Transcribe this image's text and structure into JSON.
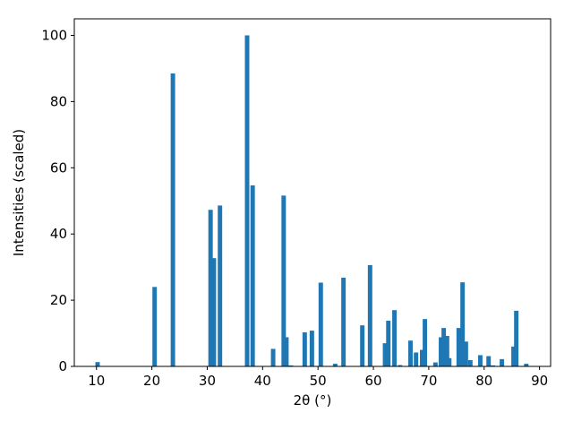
{
  "chart_data": {
    "type": "bar",
    "x_label": "2θ (°)",
    "y_label": "Intensities (scaled)",
    "color": "#1f77b4",
    "x": [
      10.2,
      20.5,
      23.8,
      30.6,
      31.2,
      32.3,
      37.2,
      38.2,
      41.9,
      43.8,
      44.3,
      45.1,
      47.6,
      48.9,
      50.5,
      53.1,
      54.6,
      58.0,
      59.4,
      62.1,
      62.7,
      63.8,
      64.8,
      66.7,
      67.7,
      68.8,
      69.3,
      71.2,
      72.2,
      72.7,
      73.3,
      73.7,
      75.4,
      76.1,
      76.7,
      77.5,
      79.3,
      80.8,
      81.6,
      83.2,
      85.3,
      85.8,
      87.6
    ],
    "values": [
      1.3,
      24,
      88.5,
      47.3,
      32.7,
      48.6,
      100,
      54.7,
      5.3,
      51.6,
      8.8,
      0.3,
      10.3,
      10.8,
      25.3,
      0.8,
      26.8,
      12.4,
      30.6,
      7.0,
      13.8,
      17.0,
      0.4,
      7.8,
      4.2,
      5.0,
      14.3,
      1.2,
      8.8,
      11.6,
      9.2,
      2.5,
      11.6,
      25.4,
      7.5,
      1.9,
      3.4,
      3.1,
      0.3,
      2.2,
      6.0,
      16.8,
      0.8
    ],
    "xlim": [
      6,
      92
    ],
    "ylim": [
      0,
      105
    ],
    "xticks": [
      10,
      20,
      30,
      40,
      50,
      60,
      70,
      80,
      90
    ],
    "yticks": [
      0,
      20,
      40,
      60,
      80,
      100
    ],
    "grid": false
  }
}
